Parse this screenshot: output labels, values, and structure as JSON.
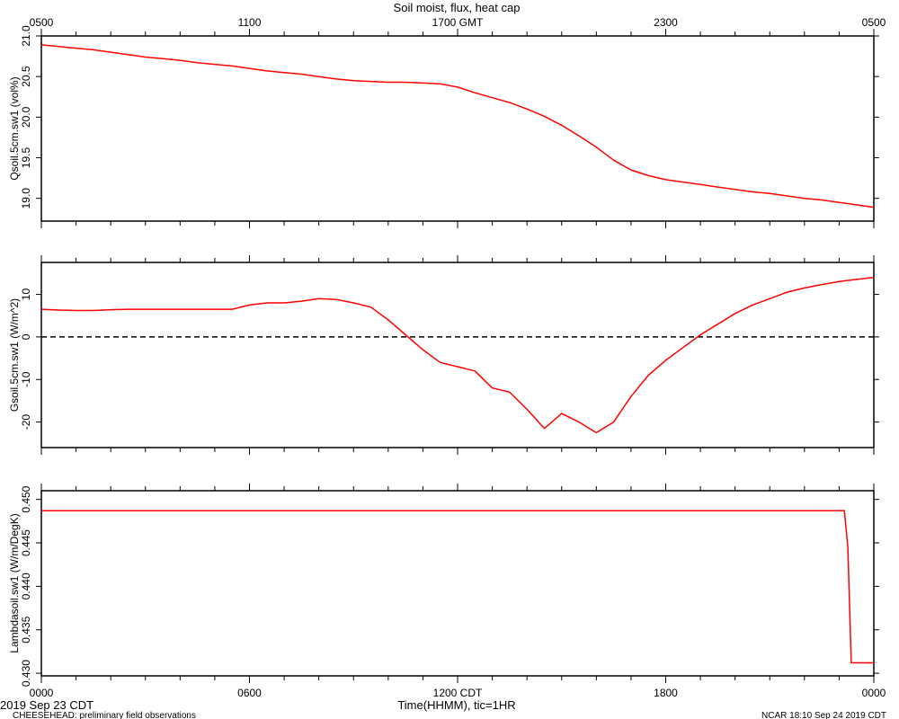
{
  "chart_data": [
    {
      "type": "line",
      "title": "Soil moist, flux, heat cap",
      "top_axis": {
        "label": "",
        "tick_labels": [
          "0500",
          "1100",
          "1700 GMT",
          "2300",
          "0500"
        ]
      },
      "bottom_axis": {
        "label": "Time(HHMM), tic=1HR",
        "tick_labels": [
          "0000",
          "0600",
          "1200 CDT",
          "1800",
          "0000"
        ]
      },
      "x_unit": "hours since 0000 CDT",
      "xlim": [
        0,
        24
      ],
      "ylabel": "Qsoil.5cm.sw1 (vol%)",
      "ylim": [
        18.72,
        21.0
      ],
      "yticks": [
        "19.0",
        "19.5",
        "20.0",
        "20.5",
        "21.0"
      ],
      "grid": false,
      "series": [
        {
          "name": "",
          "color": "#ff0000",
          "x": [
            0,
            0.5,
            1,
            1.5,
            2,
            2.5,
            3,
            3.5,
            4,
            4.5,
            5,
            5.5,
            6,
            6.5,
            7,
            7.5,
            8,
            8.5,
            9,
            9.5,
            10,
            10.5,
            11,
            11.5,
            12,
            12.5,
            13,
            13.5,
            14,
            14.5,
            15,
            15.5,
            16,
            16.5,
            17,
            17.5,
            18,
            18.5,
            19,
            19.5,
            20,
            20.5,
            21,
            21.5,
            22,
            22.5,
            23,
            23.5,
            24
          ],
          "values": [
            20.89,
            20.87,
            20.85,
            20.83,
            20.8,
            20.77,
            20.74,
            20.72,
            20.7,
            20.67,
            20.65,
            20.63,
            20.6,
            20.57,
            20.55,
            20.53,
            20.5,
            20.47,
            20.45,
            20.44,
            20.43,
            20.43,
            20.42,
            20.41,
            20.37,
            20.3,
            20.24,
            20.18,
            20.1,
            20.01,
            19.9,
            19.77,
            19.63,
            19.47,
            19.35,
            19.28,
            19.23,
            19.2,
            19.17,
            19.14,
            19.11,
            19.08,
            19.06,
            19.03,
            19.0,
            18.98,
            18.95,
            18.92,
            18.89
          ]
        }
      ]
    },
    {
      "type": "line",
      "ylabel": "Gsoil.5cm.sw1 (W/m^2)",
      "ylim": [
        -26,
        17.5
      ],
      "yticks": [
        "-20",
        "-10",
        "0",
        "10"
      ],
      "x_unit": "hours since 0000 CDT",
      "xlim": [
        0,
        24
      ],
      "reference_line": {
        "y": 0,
        "style": "dashed",
        "color": "#000000"
      },
      "grid": false,
      "series": [
        {
          "name": "",
          "color": "#ff0000",
          "x": [
            0,
            0.5,
            1,
            1.5,
            2,
            2.5,
            3,
            3.5,
            4,
            4.5,
            5,
            5.5,
            6,
            6.5,
            7,
            7.5,
            8,
            8.5,
            9,
            9.5,
            10,
            10.5,
            11,
            11.5,
            12,
            12.5,
            13,
            13.5,
            14,
            14.5,
            15,
            15.5,
            16,
            16.5,
            17,
            17.5,
            18,
            18.5,
            19,
            19.5,
            20,
            20.5,
            21,
            21.5,
            22,
            22.5,
            23,
            23.5,
            24
          ],
          "values": [
            6.5,
            6.3,
            6.2,
            6.2,
            6.4,
            6.5,
            6.5,
            6.5,
            6.5,
            6.5,
            6.5,
            6.5,
            7.5,
            8.0,
            8.0,
            8.4,
            9.0,
            8.8,
            8.0,
            7.0,
            4.0,
            0.5,
            -3.0,
            -6.0,
            -7.0,
            -8.0,
            -12.0,
            -13.0,
            -17.0,
            -21.5,
            -18.0,
            -20.0,
            -22.5,
            -20.0,
            -14.0,
            -9.0,
            -5.5,
            -2.5,
            0.5,
            3.0,
            5.5,
            7.5,
            9.0,
            10.5,
            11.5,
            12.3,
            13.0,
            13.5,
            14.0
          ]
        }
      ]
    },
    {
      "type": "line",
      "ylabel": "Lambdasoil.sw1 (W/m/DegK)",
      "ylim": [
        0.4297,
        0.451
      ],
      "yticks": [
        "0.430",
        "0.435",
        "0.440",
        "0.445",
        "0.450"
      ],
      "x_unit": "hours since 0000 CDT",
      "xlim": [
        0,
        24
      ],
      "grid": false,
      "series": [
        {
          "name": "",
          "color": "#ff0000",
          "x": [
            0,
            23.15,
            23.25,
            23.35,
            24
          ],
          "values": [
            0.4487,
            0.4487,
            0.4445,
            0.4312,
            0.4312
          ]
        }
      ]
    }
  ],
  "footer": {
    "left_date": "2019 Sep 23 CDT",
    "left_note": "CHEESEHEAD: preliminary field observations",
    "right_note": "NCAR 18:10 Sep 24 2019 CDT"
  }
}
